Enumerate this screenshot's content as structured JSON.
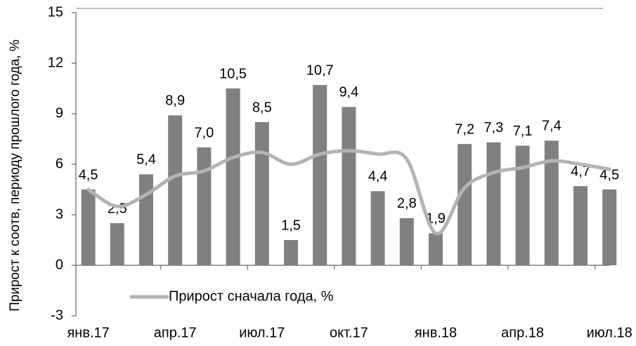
{
  "chart_data": {
    "type": "bar",
    "y_label": "Прирост к соотв, периоду прошлого года, %",
    "categories": [
      "янв.17",
      null,
      null,
      "апр.17",
      null,
      null,
      "июл.17",
      null,
      null,
      "окт.17",
      null,
      null,
      "янв.18",
      null,
      null,
      "апр.18",
      null,
      null,
      "июл.18"
    ],
    "series": [
      {
        "type": "bar",
        "color": "#808080",
        "values": [
          4.5,
          2.5,
          5.4,
          8.9,
          7.0,
          10.5,
          8.5,
          1.5,
          10.7,
          9.4,
          4.4,
          2.8,
          1.9,
          7.2,
          7.3,
          7.1,
          7.4,
          4.7,
          4.5
        ],
        "value_labels": [
          "4,5",
          "2,5",
          "5,4",
          "8,9",
          "7,0",
          "10,5",
          "8,5",
          "1,5",
          "10,7",
          "9,4",
          "4,4",
          "2,8",
          "1,9",
          "7,2",
          "7,3",
          "7,1",
          "7,4",
          "4,7",
          "4,5"
        ]
      },
      {
        "type": "line",
        "name": "Прирост сначала года, %",
        "color": "#b3b3b3",
        "values": [
          4.5,
          3.5,
          4.2,
          5.3,
          5.6,
          6.4,
          6.7,
          6.0,
          6.6,
          6.8,
          6.6,
          6.3,
          1.9,
          4.6,
          5.5,
          5.8,
          6.2,
          6.0,
          5.7
        ]
      }
    ],
    "ylim": [
      -3,
      15
    ],
    "yticks": [
      -3,
      0,
      3,
      6,
      9,
      12,
      15
    ],
    "grid": false
  }
}
